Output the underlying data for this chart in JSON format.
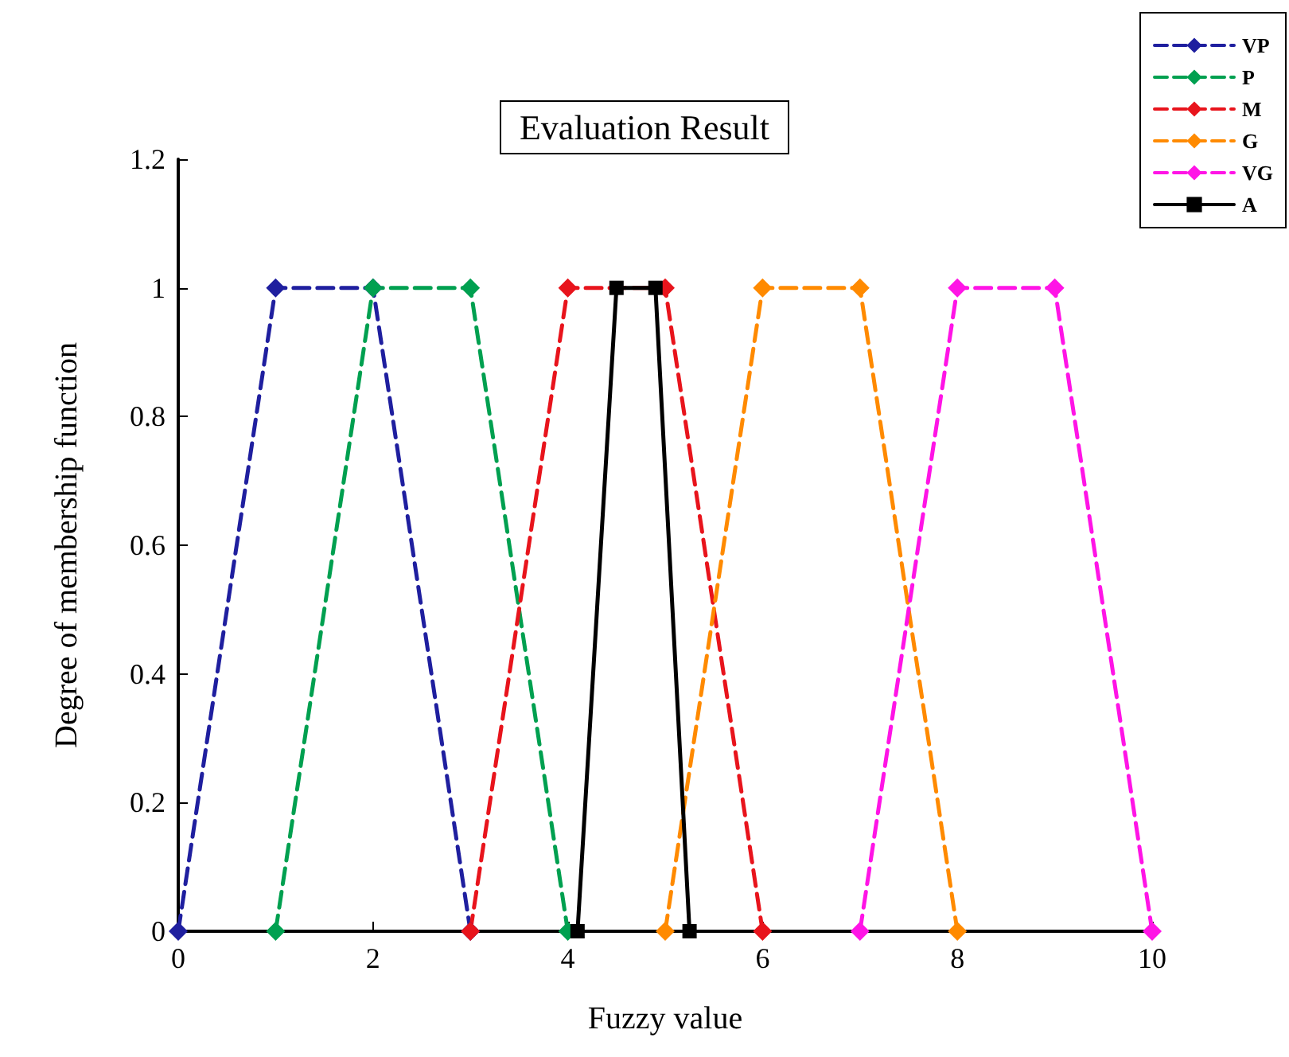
{
  "chart_data": {
    "type": "line",
    "title": "Evaluation Result",
    "xlabel": "Fuzzy value",
    "ylabel": "Degree of membership function",
    "xlim": [
      0,
      10
    ],
    "xticks": [
      0,
      2,
      4,
      6,
      8,
      10
    ],
    "ylim": [
      0,
      1.2
    ],
    "yticks": [
      0,
      0.2,
      0.4,
      0.6,
      0.8,
      1,
      1.2
    ],
    "grid": false,
    "legend": "top right",
    "series": [
      {
        "name": "VP",
        "color": "#1f1f9f",
        "x": [
          0,
          1,
          2,
          3
        ],
        "values": [
          0,
          1,
          1,
          0
        ],
        "marker": "diamond",
        "line_style": "dashed"
      },
      {
        "name": "P",
        "color": "#00a050",
        "x": [
          1,
          2,
          3,
          4
        ],
        "values": [
          0,
          1,
          1,
          0
        ],
        "marker": "diamond",
        "line_style": "dashed"
      },
      {
        "name": "M",
        "color": "#e8141c",
        "x": [
          3,
          4,
          5,
          6
        ],
        "values": [
          0,
          1,
          1,
          0
        ],
        "marker": "diamond",
        "line_style": "dashed"
      },
      {
        "name": "G",
        "color": "#ff8a00",
        "x": [
          5,
          6,
          7,
          8
        ],
        "values": [
          0,
          1,
          1,
          0
        ],
        "marker": "diamond",
        "line_style": "dashed"
      },
      {
        "name": "VG",
        "color": "#ff14e6",
        "x": [
          7,
          8,
          9,
          10
        ],
        "values": [
          0,
          1,
          1,
          0
        ],
        "marker": "diamond",
        "line_style": "dashed"
      },
      {
        "name": "A",
        "color": "#000000",
        "x": [
          4.1,
          4.5,
          4.9,
          5.25
        ],
        "values": [
          0,
          1,
          1,
          0
        ],
        "marker": "square",
        "line_style": "solid"
      }
    ]
  }
}
